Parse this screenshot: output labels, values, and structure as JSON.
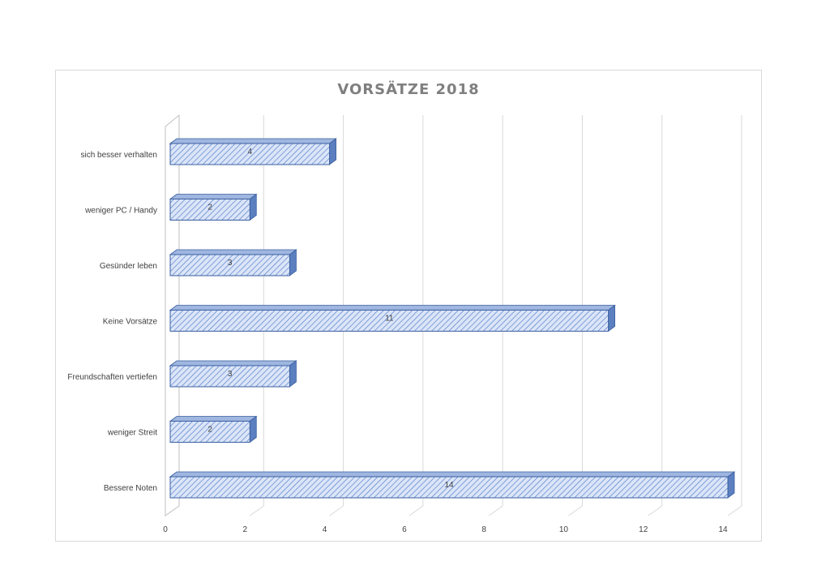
{
  "chart_data": {
    "type": "bar",
    "orientation": "horizontal",
    "title": "VORSÄTZE 2018",
    "categories": [
      "sich besser verhalten",
      "weniger PC / Handy",
      "Gesünder leben",
      "Keine Vorsätze",
      "Freundschaften vertiefen",
      "weniger Streit",
      "Bessere Noten"
    ],
    "values": [
      4,
      2,
      3,
      11,
      3,
      2,
      14
    ],
    "data_labels": [
      "4",
      "2",
      "3",
      "11",
      "3",
      "2",
      "14"
    ],
    "xlim": [
      0,
      14
    ],
    "x_ticks": [
      "0",
      "2",
      "4",
      "6",
      "8",
      "10",
      "12",
      "14"
    ],
    "grid": "vertical",
    "legend": "none",
    "colors": {
      "bar_fill": "#dbe5f8",
      "bar_hatch": "#4f7ac7",
      "bar_edge": "#3a5f9f",
      "bar_top": "#9fb6e0",
      "bar_side": "#5b7fbf",
      "grid": "#d9d9d9",
      "title": "#7f7f7f",
      "text": "#404040"
    }
  }
}
